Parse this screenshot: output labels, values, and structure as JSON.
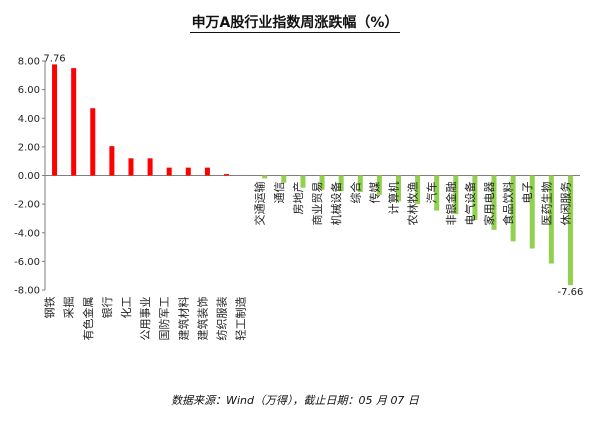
{
  "chart_data": {
    "type": "bar",
    "title": "申万A股行业指数周涨跌幅（%）",
    "xlabel": "",
    "ylabel": "",
    "ylim": [
      -8,
      8
    ],
    "yticks": [
      "8.00",
      "6.00",
      "4.00",
      "2.00",
      "0.00",
      "-2.00",
      "-4.00",
      "-6.00",
      "-8.00"
    ],
    "grid": false,
    "colors": {
      "positive": "#ff0000",
      "negative": "#92d050"
    },
    "categories": [
      "钢铁",
      "采掘",
      "有色金属",
      "银行",
      "化工",
      "公用事业",
      "国防军工",
      "建筑材料",
      "建筑装饰",
      "纺织服装",
      "轻工制造",
      "交通运输",
      "通信",
      "房地产",
      "商业贸易",
      "机械设备",
      "综合",
      "传媒",
      "计算机",
      "农林牧渔",
      "汽车",
      "非银金融",
      "电气设备",
      "家用电器",
      "食品饮料",
      "电子",
      "医药生物",
      "休闲服务"
    ],
    "values": [
      7.76,
      7.5,
      4.7,
      2.05,
      1.2,
      1.2,
      0.55,
      0.55,
      0.55,
      0.1,
      0.0,
      -0.2,
      -0.5,
      -0.85,
      -1.0,
      -1.1,
      -1.15,
      -1.35,
      -1.8,
      -2.0,
      -2.45,
      -2.7,
      -3.1,
      -3.8,
      -4.6,
      -5.1,
      -6.15,
      -7.66
    ],
    "data_labels": [
      {
        "index": 0,
        "text": "7.76"
      },
      {
        "index": 27,
        "text": "-7.66"
      }
    ]
  },
  "footer": {
    "source": "数据来源：Wind（万得），截止日期：05 月 07 日"
  }
}
